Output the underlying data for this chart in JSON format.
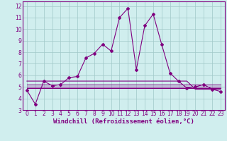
{
  "xlabel": "Windchill (Refroidissement éolien,°C)",
  "hours": [
    0,
    1,
    2,
    3,
    4,
    5,
    6,
    7,
    8,
    9,
    10,
    11,
    12,
    13,
    14,
    15,
    16,
    17,
    18,
    19,
    20,
    21,
    22,
    23
  ],
  "main_line": [
    4.7,
    3.5,
    5.5,
    5.1,
    5.2,
    5.8,
    5.9,
    7.5,
    7.9,
    8.7,
    8.1,
    11.0,
    11.8,
    6.5,
    10.3,
    11.3,
    8.7,
    6.2,
    5.5,
    4.9,
    5.0,
    5.2,
    4.8,
    4.6
  ],
  "flat_line1": [
    5.5,
    5.5,
    5.5,
    5.5,
    5.5,
    5.5,
    5.5,
    5.5,
    5.5,
    5.5,
    5.5,
    5.5,
    5.5,
    5.5,
    5.5,
    5.5,
    5.5,
    5.5,
    5.5,
    5.5,
    4.8,
    4.8,
    4.8,
    4.8
  ],
  "flat_line2": [
    4.9,
    4.9,
    4.9,
    4.9,
    4.9,
    4.9,
    4.9,
    4.9,
    4.9,
    4.9,
    4.9,
    4.9,
    4.9,
    4.9,
    4.9,
    4.9,
    4.9,
    4.9,
    4.9,
    4.9,
    4.9,
    4.9,
    4.9,
    4.9
  ],
  "flat_line3": [
    5.0,
    5.0,
    5.0,
    5.0,
    5.0,
    5.0,
    5.0,
    5.0,
    5.0,
    5.0,
    5.0,
    5.0,
    5.0,
    5.0,
    5.0,
    5.0,
    5.0,
    5.0,
    5.0,
    5.0,
    5.0,
    5.0,
    5.0,
    5.0
  ],
  "flat_line4": [
    5.2,
    5.2,
    5.2,
    5.2,
    5.2,
    5.2,
    5.2,
    5.2,
    5.2,
    5.2,
    5.2,
    5.2,
    5.2,
    5.2,
    5.2,
    5.2,
    5.2,
    5.2,
    5.2,
    5.2,
    5.2,
    5.2,
    5.2,
    5.2
  ],
  "line_color": "#800080",
  "bg_color": "#d0eeee",
  "grid_color": "#a0c8c8",
  "ylim": [
    3.0,
    12.4
  ],
  "yticks": [
    3,
    4,
    5,
    6,
    7,
    8,
    9,
    10,
    11,
    12
  ],
  "xticks": [
    0,
    1,
    2,
    3,
    4,
    5,
    6,
    7,
    8,
    9,
    10,
    11,
    12,
    13,
    14,
    15,
    16,
    17,
    18,
    19,
    20,
    21,
    22,
    23
  ],
  "tick_fontsize": 5.5,
  "xlabel_fontsize": 6.5,
  "marker": "D",
  "markersize": 2.0,
  "linewidth": 0.8
}
